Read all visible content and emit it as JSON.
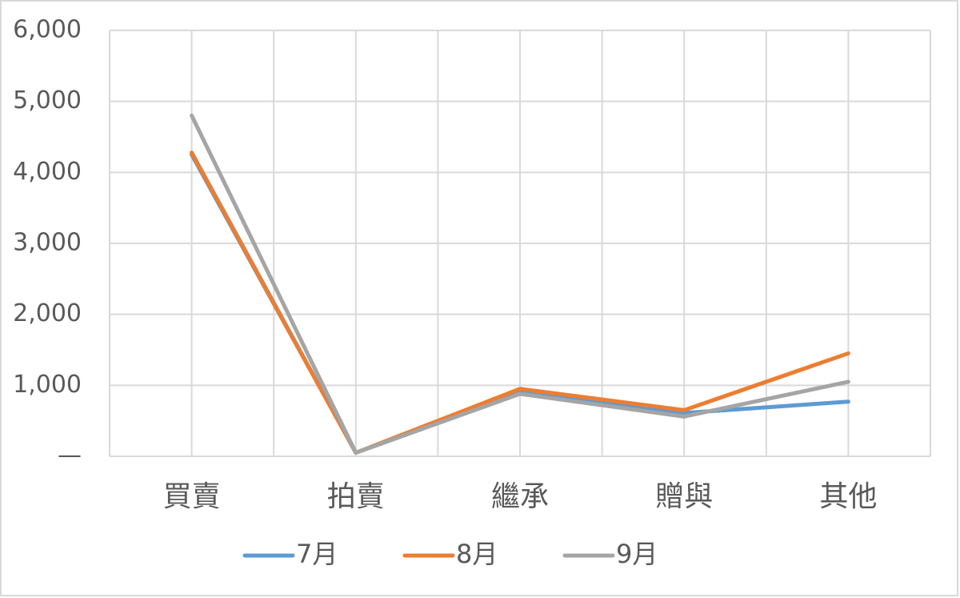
{
  "chart_data": {
    "type": "line",
    "categories": [
      "買賣",
      "拍賣",
      "繼承",
      "贈與",
      "其他"
    ],
    "series": [
      {
        "name": "7月",
        "color": "#5b9bd5",
        "values": [
          4250,
          50,
          900,
          610,
          770
        ]
      },
      {
        "name": "8月",
        "color": "#ed7d31",
        "values": [
          4280,
          50,
          950,
          650,
          1450
        ]
      },
      {
        "name": "9月",
        "color": "#a5a5a5",
        "values": [
          4800,
          50,
          880,
          560,
          1050
        ]
      }
    ],
    "ylim": [
      0,
      6000
    ],
    "yticks": [
      {
        "value": 0,
        "label": "—"
      },
      {
        "value": 1000,
        "label": "1,000"
      },
      {
        "value": 2000,
        "label": "2,000"
      },
      {
        "value": 3000,
        "label": "3,000"
      },
      {
        "value": 4000,
        "label": "4,000"
      },
      {
        "value": 5000,
        "label": "5,000"
      },
      {
        "value": 6000,
        "label": "6,000"
      }
    ],
    "grid": true,
    "legend": "bottom"
  }
}
